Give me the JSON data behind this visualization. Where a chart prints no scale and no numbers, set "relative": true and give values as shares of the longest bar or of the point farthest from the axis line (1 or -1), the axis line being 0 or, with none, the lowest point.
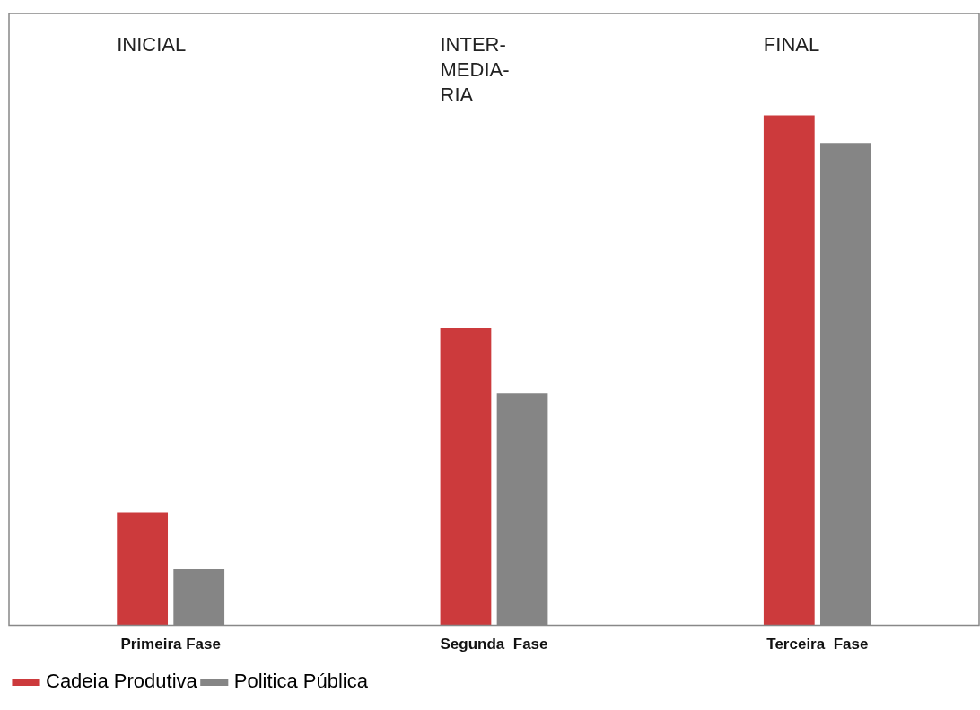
{
  "chart_data": {
    "type": "bar",
    "relative": true,
    "grid": false,
    "legend": "bottom left",
    "categories": [
      "Primeira Fase",
      "Segunda  Fase",
      "Terceira  Fase"
    ],
    "series": [
      {
        "name": "Cadeia Produtiva",
        "color": "#cc3a3c",
        "values": [
          0.222,
          0.584,
          1
        ]
      },
      {
        "name": "Politica Pública",
        "color": "#858585",
        "values": [
          0.11,
          0.455,
          0.946
        ]
      }
    ],
    "annotations": [
      "INICIAL",
      "INTER-\nMEDIA-\nRIA",
      "FINAL"
    ]
  }
}
